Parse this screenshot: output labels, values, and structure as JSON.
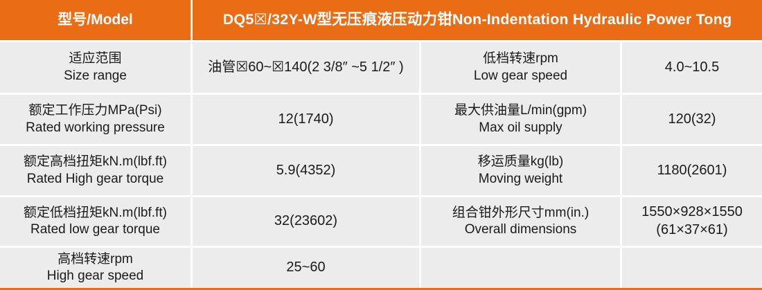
{
  "colors": {
    "accent_orange": "#EA6D16",
    "cell_gray": "#ECECEC",
    "gutter_white": "#FFFFFF",
    "text_dark": "#1A1A1A"
  },
  "header": {
    "model_label": "型号/Model",
    "title": "DQ5☒/32Y-W型无压痕液压动力钳Non-Indentation Hydraulic Power Tong"
  },
  "rows": [
    {
      "left_label_zh": "适应范围",
      "left_label_en": "Size range",
      "left_value": "油管☒60~☒140(2 3/8″ ~5 1/2″ )",
      "right_label_zh": "低档转速rpm",
      "right_label_en": "Low gear speed",
      "right_value": "4.0~10.5"
    },
    {
      "left_label_zh": "额定工作压力MPa(Psi)",
      "left_label_en": "Rated working pressure",
      "left_value": "12(1740)",
      "right_label_zh": "最大供油量L/min(gpm)",
      "right_label_en": "Max oil supply",
      "right_value": "120(32)"
    },
    {
      "left_label_zh": "额定高档扭矩kN.m(lbf.ft)",
      "left_label_en": "Rated High gear torque",
      "left_value": "5.9(4352)",
      "right_label_zh": "移运质量kg(lb)",
      "right_label_en": "Moving weight",
      "right_value": "1180(2601)"
    },
    {
      "left_label_zh": "额定低档扭矩kN.m(lbf.ft)",
      "left_label_en": "Rated low gear torque",
      "left_value": "32(23602)",
      "right_label_zh": "组合钳外形尺寸mm(in.)",
      "right_label_en": "Overall dimensions",
      "right_value": "1550×928×1550",
      "right_value_line2": "(61×37×61)"
    },
    {
      "left_label_zh": "高档转速rpm",
      "left_label_en": "High gear speed",
      "left_value": "25~60",
      "right_label_zh": "",
      "right_label_en": "",
      "right_value": ""
    }
  ]
}
